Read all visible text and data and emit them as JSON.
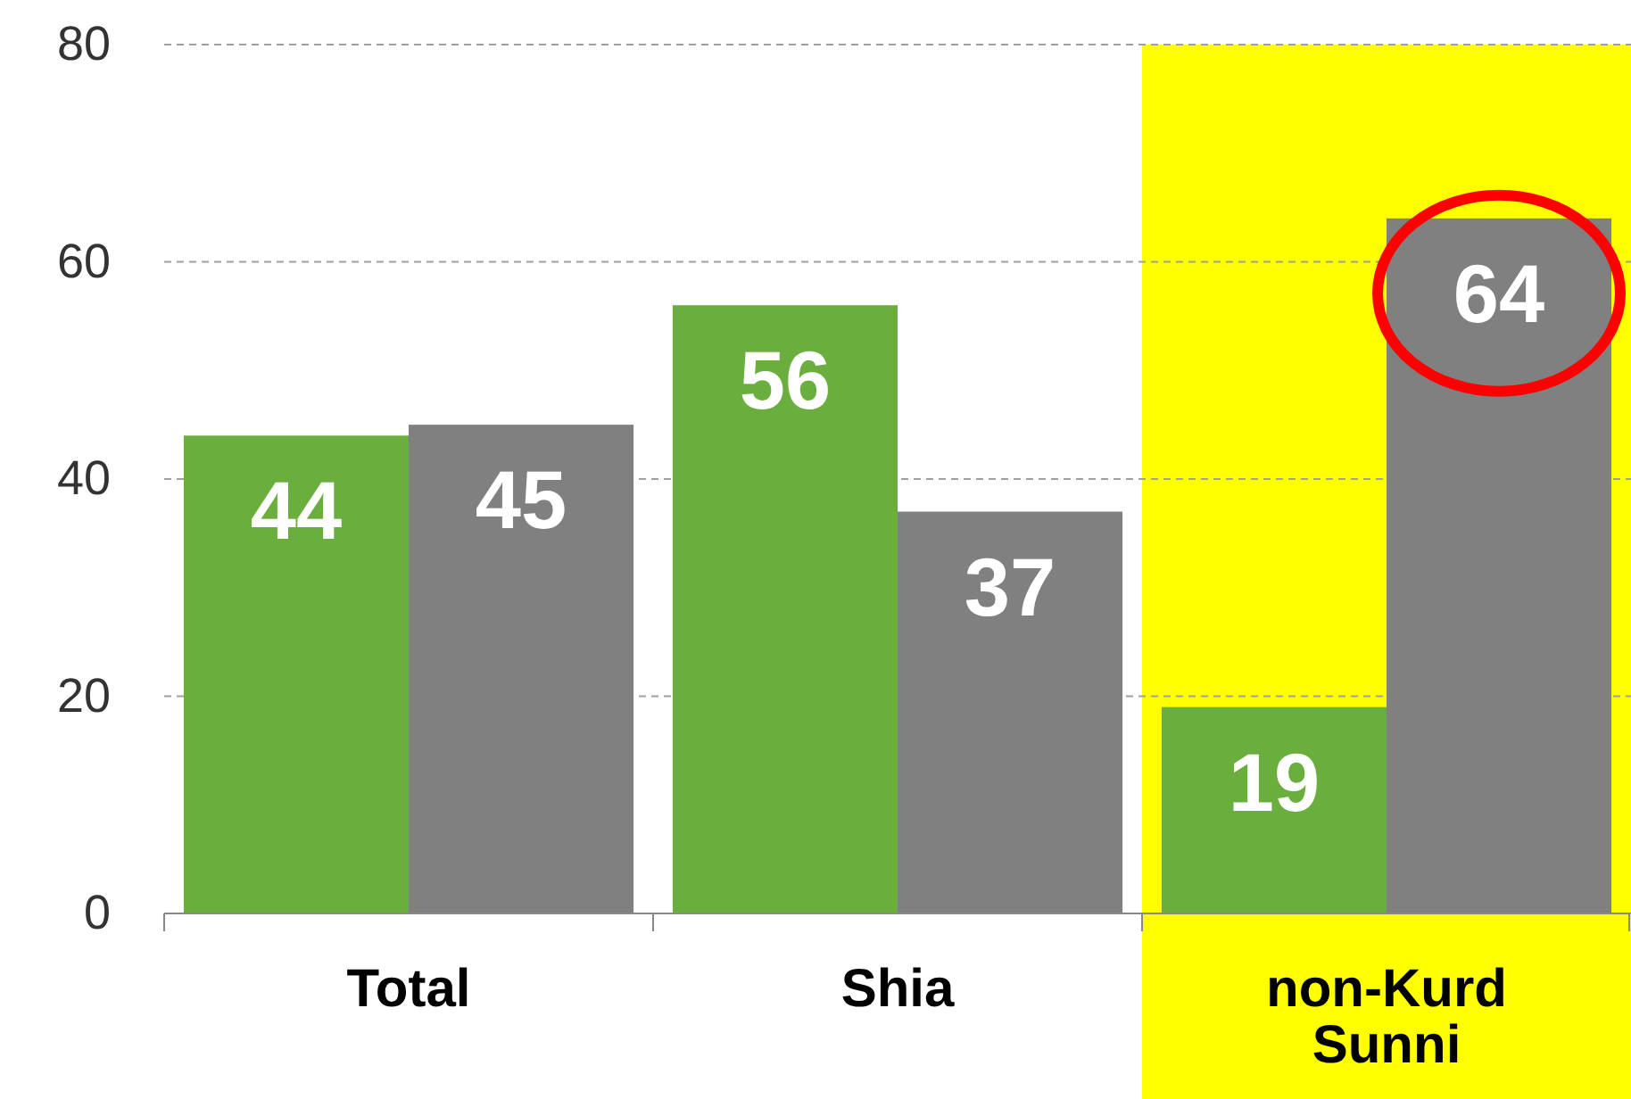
{
  "chart_data": {
    "type": "bar",
    "categories": [
      "Total",
      "Shia",
      "non-Kurd Sunni"
    ],
    "series": [
      {
        "color": "#6aae3e",
        "values": [
          44,
          56,
          19
        ]
      },
      {
        "color": "#808080",
        "values": [
          45,
          37,
          64
        ]
      }
    ],
    "ylim": [
      0,
      80
    ],
    "yticks": [
      0,
      20,
      40,
      60,
      80
    ],
    "grid": "y",
    "data_labels": true,
    "bands": [
      {
        "axis": "x",
        "from": "non-Kurd Sunni",
        "to": "non-Kurd Sunni",
        "color": "#ffff00"
      }
    ]
  }
}
